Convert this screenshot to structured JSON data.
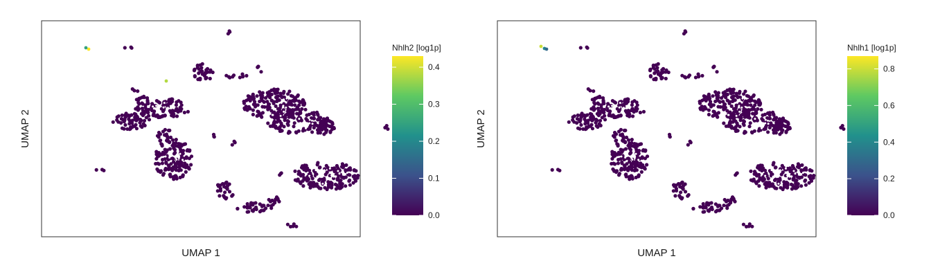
{
  "chart_data": [
    {
      "type": "scatter",
      "subtype": "hexbin-umap",
      "xlabel": "UMAP 1",
      "ylabel": "UMAP 2",
      "legend": {
        "title": "Nhlh2 [log1p]",
        "placement": "right",
        "ticks": [
          "0.0",
          "0.1",
          "0.2",
          "0.3",
          "0.4"
        ],
        "min": 0,
        "max": 0.43
      },
      "colormap": [
        "#440154",
        "#3b528b",
        "#21918c",
        "#5ec962",
        "#fde725"
      ],
      "background_color": "#440154",
      "hotspots": [
        {
          "region": "top-left small cluster",
          "value": 0.43
        },
        {
          "region": "top-left small cluster",
          "value": 0.25
        },
        {
          "region": "upper-center cluster edge",
          "value": 0.38
        }
      ]
    },
    {
      "type": "scatter",
      "subtype": "hexbin-umap",
      "xlabel": "UMAP 1",
      "ylabel": "UMAP 2",
      "legend": {
        "title": "Nhlh1 [log1p]",
        "placement": "right",
        "ticks": [
          "0.0",
          "0.2",
          "0.4",
          "0.6",
          "0.8"
        ],
        "min": 0,
        "max": 0.87
      },
      "colormap": [
        "#440154",
        "#3b528b",
        "#21918c",
        "#5ec962",
        "#fde725"
      ],
      "background_color": "#440154",
      "hotspots": [
        {
          "region": "top-left small cluster",
          "value": 0.8
        },
        {
          "region": "top-left small cluster",
          "value": 0.4
        },
        {
          "region": "top-left small cluster",
          "value": 0.3
        }
      ]
    }
  ]
}
